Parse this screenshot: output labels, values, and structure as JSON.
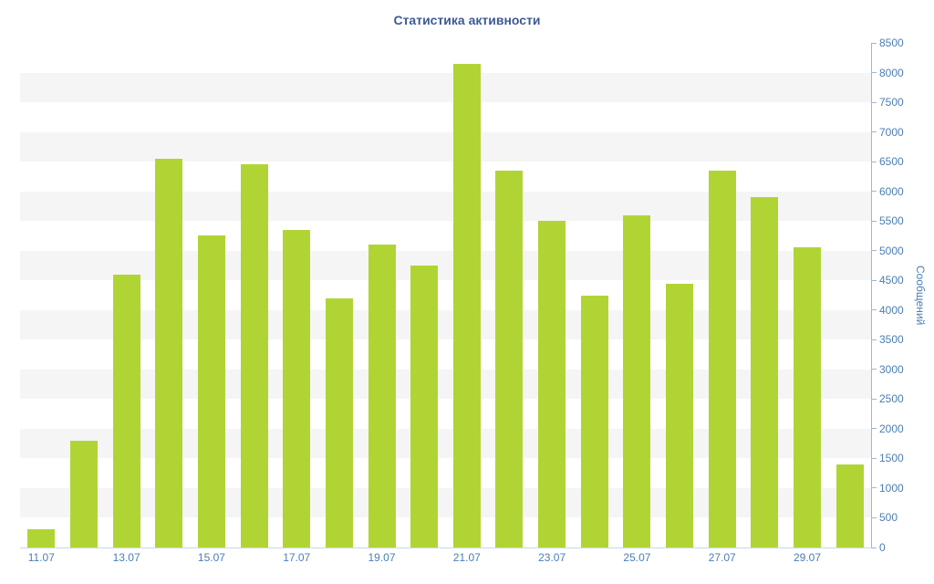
{
  "title": "Статистика активности",
  "chart_data": {
    "type": "bar",
    "title": "Статистика активности",
    "xlabel": "",
    "ylabel": "Сообщений",
    "ylim": [
      0,
      8500
    ],
    "y_tick_step": 500,
    "y_tick_labels": [
      "0",
      "500",
      "1000",
      "1500",
      "2000",
      "2500",
      "3000",
      "3500",
      "4000",
      "4500",
      "5000",
      "5500",
      "6000",
      "6500",
      "7000",
      "7500",
      "8000",
      "8500"
    ],
    "x_tick_labels": [
      "11.07",
      "13.07",
      "15.07",
      "17.07",
      "19.07",
      "21.07",
      "23.07",
      "25.07",
      "27.07",
      "29.07"
    ],
    "categories": [
      "11.07",
      "12.07",
      "13.07",
      "14.07",
      "15.07",
      "16.07",
      "17.07",
      "18.07",
      "19.07",
      "20.07",
      "21.07",
      "22.07",
      "23.07",
      "24.07",
      "25.07",
      "26.07",
      "27.07",
      "28.07",
      "29.07",
      "30.07"
    ],
    "values": [
      300,
      1800,
      4600,
      6550,
      5250,
      6450,
      5350,
      4200,
      5100,
      4750,
      8150,
      6350,
      5500,
      4250,
      5600,
      4450,
      6350,
      5900,
      5050,
      1400
    ],
    "legend": "none",
    "grid": "striped-horizontal-bands",
    "y_axis_position": "right",
    "colors": {
      "bar": "#b1d435",
      "stripe": "#f5f5f5",
      "stripe_alt": "#ffffff",
      "axis_line": "#9db7d6",
      "tick_text": "#4a7eb5",
      "title_text": "#3d5a96"
    }
  }
}
